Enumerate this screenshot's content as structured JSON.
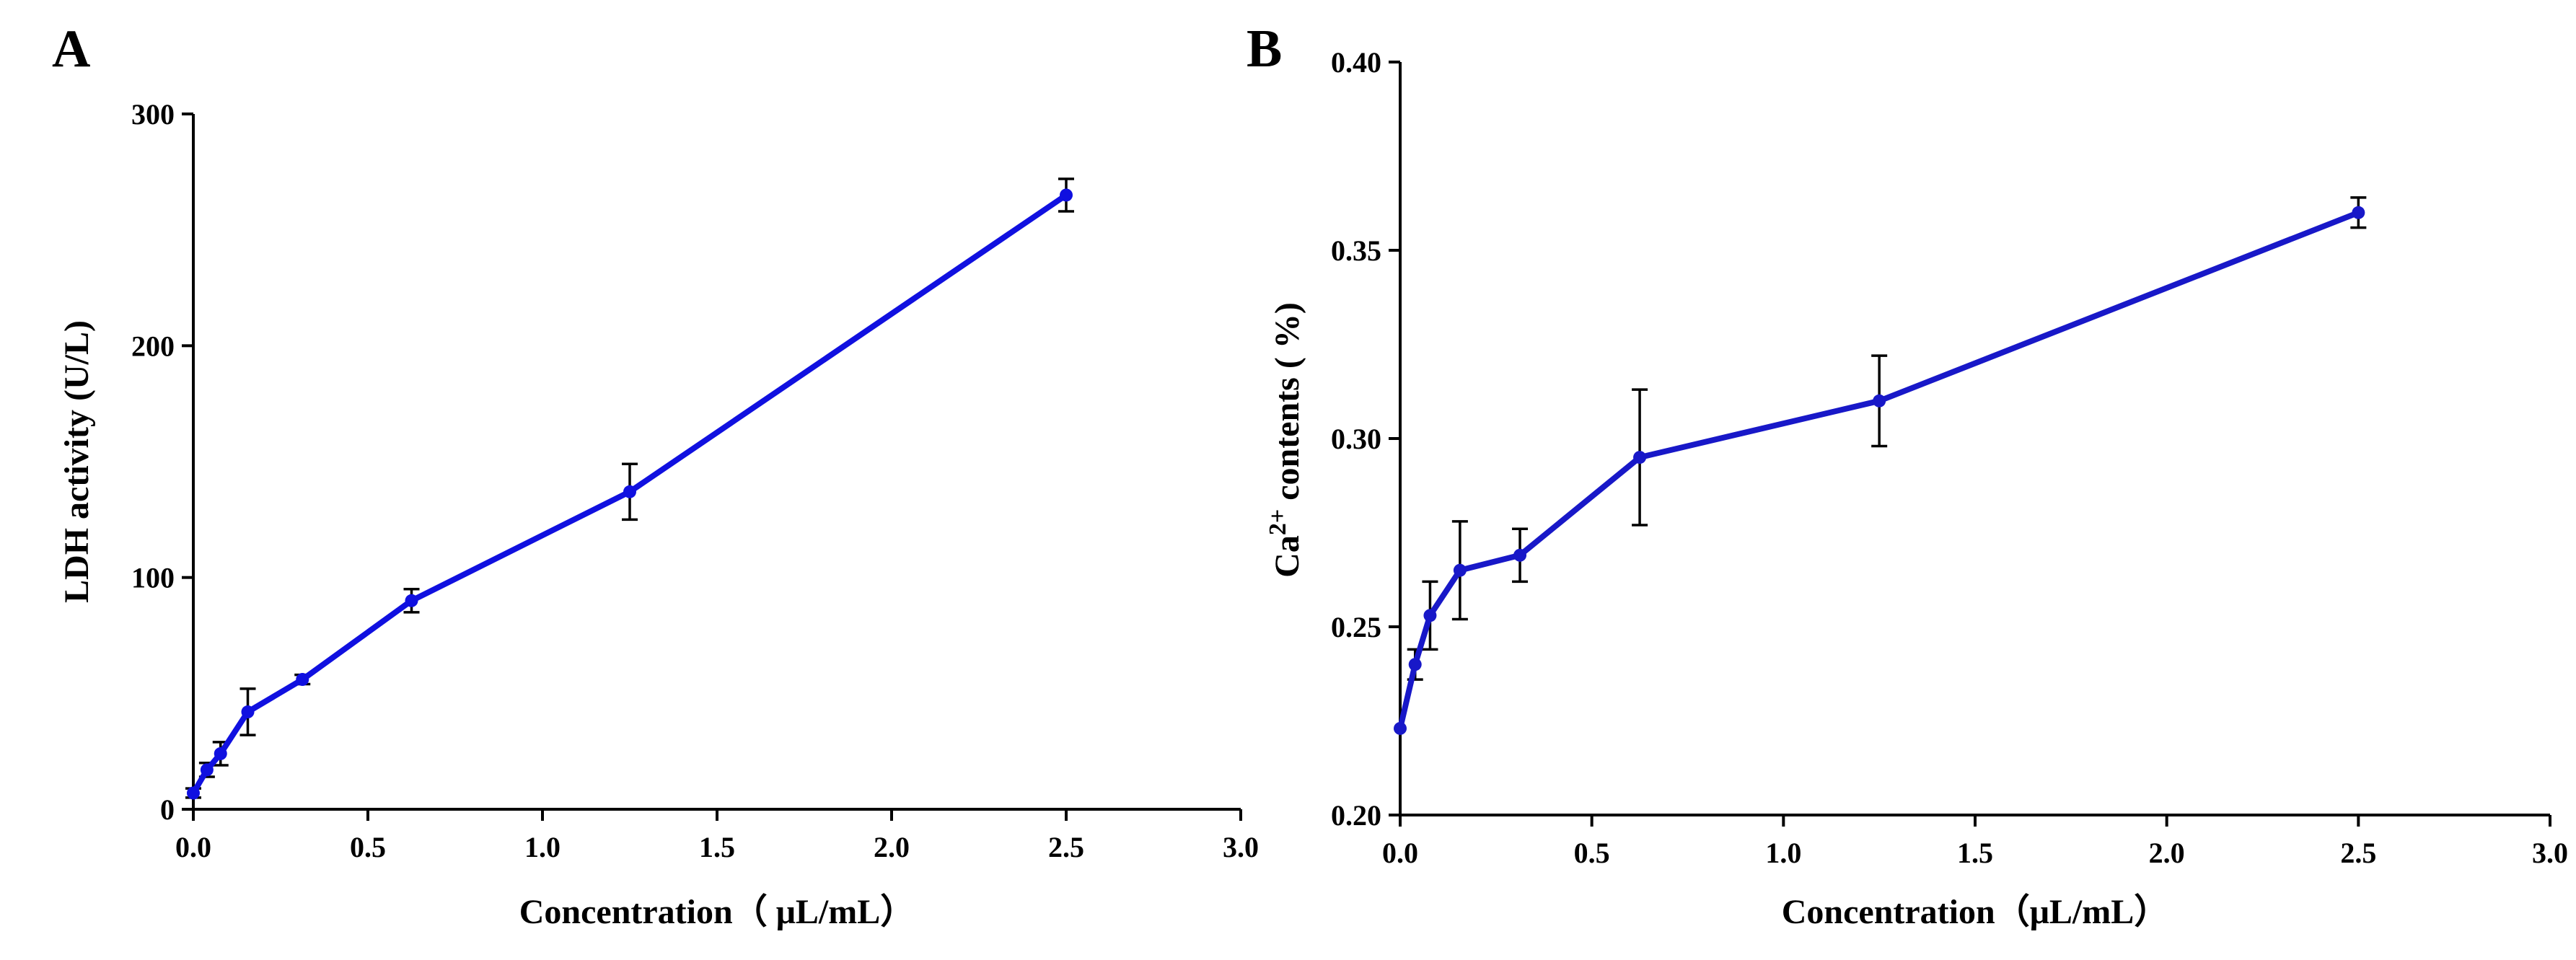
{
  "chart_data": [
    {
      "panel": "A",
      "type": "line",
      "xlabel": "Concentration（ μL/mL）",
      "ylabel": "LDH activity (U/L)",
      "xlim": [
        0,
        3.0
      ],
      "ylim": [
        0,
        300
      ],
      "xticks": [
        "0.0",
        "0.5",
        "1.0",
        "1.5",
        "2.0",
        "2.5",
        "3.0"
      ],
      "yticks": [
        "0",
        "100",
        "200",
        "300"
      ],
      "xtick_values": [
        0,
        0.5,
        1.0,
        1.5,
        2.0,
        2.5,
        3.0
      ],
      "ytick_values": [
        0,
        100,
        200,
        300
      ],
      "series": [
        {
          "name": "LDH activity",
          "color": "#1010e0",
          "x": [
            0,
            0.039,
            0.078,
            0.156,
            0.3125,
            0.625,
            1.25,
            2.5
          ],
          "y": [
            7,
            17,
            24,
            42,
            56,
            90,
            137,
            265
          ],
          "err": [
            2,
            3,
            5,
            10,
            2,
            5,
            12,
            7
          ]
        }
      ]
    },
    {
      "panel": "B",
      "type": "line",
      "xlabel": "Concentration（μL/mL）",
      "ylabel_main": "Ca",
      "ylabel_sup": "2+",
      "ylabel_rest": " contents ( %)",
      "xlim": [
        0,
        3.0
      ],
      "ylim": [
        0.2,
        0.4
      ],
      "xticks": [
        "0.0",
        "0.5",
        "1.0",
        "1.5",
        "2.0",
        "2.5",
        "3.0"
      ],
      "yticks": [
        "0.20",
        "0.25",
        "0.30",
        "0.35",
        "0.40"
      ],
      "xtick_values": [
        0,
        0.5,
        1.0,
        1.5,
        2.0,
        2.5,
        3.0
      ],
      "ytick_values": [
        0.2,
        0.25,
        0.3,
        0.35,
        0.4
      ],
      "series": [
        {
          "name": "Ca2+ contents",
          "color": "#1818c8",
          "x": [
            0,
            0.039,
            0.078,
            0.156,
            0.3125,
            0.625,
            1.25,
            2.5
          ],
          "y": [
            0.223,
            0.24,
            0.253,
            0.265,
            0.269,
            0.295,
            0.31,
            0.36
          ],
          "err": [
            0,
            0.004,
            0.009,
            0.013,
            0.007,
            0.018,
            0.012,
            0.004
          ]
        }
      ]
    }
  ]
}
